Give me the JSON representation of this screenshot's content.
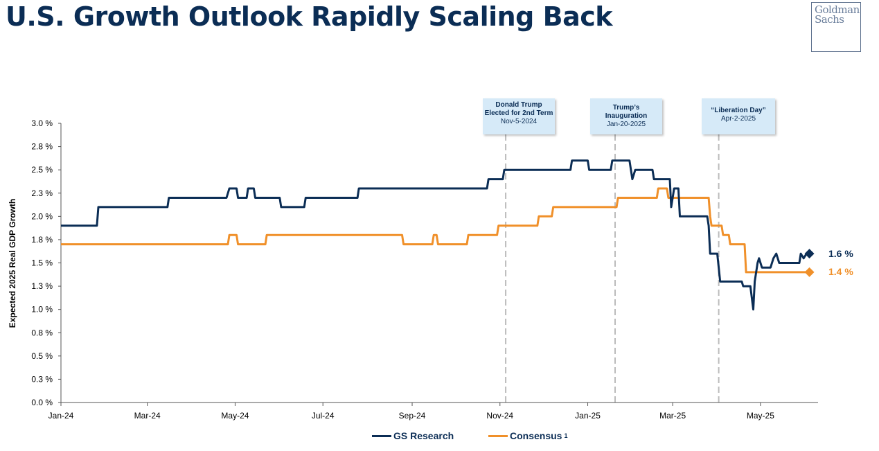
{
  "title": "U.S. Growth Outlook Rapidly Scaling Back",
  "logo": {
    "line1": "Goldman",
    "line2": "Sachs"
  },
  "annotations": [
    {
      "title": "Donald Trump Elected for 2nd Term",
      "date": "Nov-5-2024"
    },
    {
      "title": "Trump’s Inauguration",
      "date": "Jan-20-2025"
    },
    {
      "title": "“Liberation Day”",
      "date": "Apr-2-2025"
    }
  ],
  "legend": {
    "gs": "GS Research",
    "consensus": "Consensus",
    "consensus_sup": "1"
  },
  "end_labels": {
    "gs": "1.6 %",
    "consensus": "1.4 %"
  },
  "colors": {
    "gs": "#0b2d55",
    "consensus": "#f0902a",
    "axis": "#000000",
    "event_line": "#bbbbbb"
  },
  "chart_data": {
    "type": "line",
    "title": "U.S. Growth Outlook Rapidly Scaling Back",
    "ylabel": "Expected 2025 Real GDP Growth",
    "xlabel": "",
    "ylim": [
      0.0,
      3.0
    ],
    "xlim": [
      "2024-01-01",
      "2025-06-10"
    ],
    "yticks": [
      0.0,
      0.25,
      0.5,
      0.75,
      1.0,
      1.25,
      1.5,
      1.75,
      2.0,
      2.25,
      2.5,
      2.75,
      3.0
    ],
    "ytick_labels": [
      "0.0 %",
      "0.3 %",
      "0.5 %",
      "0.8 %",
      "1.0 %",
      "1.3 %",
      "1.5 %",
      "1.8 %",
      "2.0 %",
      "2.3 %",
      "2.5 %",
      "2.8 %",
      "3.0 %"
    ],
    "xticks": [
      "2024-01-01",
      "2024-03-01",
      "2024-05-01",
      "2024-07-01",
      "2024-09-01",
      "2024-11-01",
      "2025-01-01",
      "2025-03-01",
      "2025-05-01"
    ],
    "xtick_labels": [
      "Jan-24",
      "Mar-24",
      "May-24",
      "Jul-24",
      "Sep-24",
      "Nov-24",
      "Jan-25",
      "Mar-25",
      "May-25"
    ],
    "events": [
      "2024-11-05",
      "2025-01-20",
      "2025-04-02"
    ],
    "grid": false,
    "legend_position": "bottom",
    "series": [
      {
        "name": "GS Research",
        "points": [
          [
            "2024-01-01",
            1.9
          ],
          [
            "2024-01-26",
            1.9
          ],
          [
            "2024-01-27",
            2.1
          ],
          [
            "2024-03-15",
            2.1
          ],
          [
            "2024-03-16",
            2.2
          ],
          [
            "2024-04-25",
            2.2
          ],
          [
            "2024-04-27",
            2.3
          ],
          [
            "2024-05-02",
            2.3
          ],
          [
            "2024-05-03",
            2.2
          ],
          [
            "2024-05-09",
            2.2
          ],
          [
            "2024-05-10",
            2.3
          ],
          [
            "2024-05-14",
            2.3
          ],
          [
            "2024-05-15",
            2.2
          ],
          [
            "2024-06-01",
            2.2
          ],
          [
            "2024-06-02",
            2.1
          ],
          [
            "2024-06-18",
            2.1
          ],
          [
            "2024-06-19",
            2.2
          ],
          [
            "2024-07-25",
            2.2
          ],
          [
            "2024-07-26",
            2.3
          ],
          [
            "2024-10-23",
            2.3
          ],
          [
            "2024-10-24",
            2.4
          ],
          [
            "2024-11-03",
            2.4
          ],
          [
            "2024-11-04",
            2.5
          ],
          [
            "2024-12-20",
            2.5
          ],
          [
            "2024-12-21",
            2.6
          ],
          [
            "2025-01-01",
            2.6
          ],
          [
            "2025-01-02",
            2.5
          ],
          [
            "2025-01-17",
            2.5
          ],
          [
            "2025-01-18",
            2.6
          ],
          [
            "2025-01-30",
            2.6
          ],
          [
            "2025-02-01",
            2.4
          ],
          [
            "2025-02-03",
            2.5
          ],
          [
            "2025-02-15",
            2.5
          ],
          [
            "2025-02-16",
            2.4
          ],
          [
            "2025-02-27",
            2.4
          ],
          [
            "2025-02-28",
            2.1
          ],
          [
            "2025-03-01",
            2.2
          ],
          [
            "2025-03-02",
            2.3
          ],
          [
            "2025-03-05",
            2.3
          ],
          [
            "2025-03-06",
            2.0
          ],
          [
            "2025-03-25",
            2.0
          ],
          [
            "2025-03-26",
            1.9
          ],
          [
            "2025-03-27",
            1.6
          ],
          [
            "2025-04-01",
            1.6
          ],
          [
            "2025-04-02",
            1.45
          ],
          [
            "2025-04-03",
            1.3
          ],
          [
            "2025-04-18",
            1.3
          ],
          [
            "2025-04-19",
            1.25
          ],
          [
            "2025-04-24",
            1.25
          ],
          [
            "2025-04-26",
            1.0
          ],
          [
            "2025-04-27",
            1.3
          ],
          [
            "2025-04-29",
            1.5
          ],
          [
            "2025-04-30",
            1.55
          ],
          [
            "2025-05-02",
            1.45
          ],
          [
            "2025-05-08",
            1.45
          ],
          [
            "2025-05-10",
            1.55
          ],
          [
            "2025-05-12",
            1.6
          ],
          [
            "2025-05-14",
            1.5
          ],
          [
            "2025-05-28",
            1.5
          ],
          [
            "2025-05-29",
            1.6
          ],
          [
            "2025-05-31",
            1.55
          ],
          [
            "2025-06-02",
            1.6
          ],
          [
            "2025-06-04",
            1.6
          ]
        ]
      },
      {
        "name": "Consensus",
        "points": [
          [
            "2024-01-01",
            1.7
          ],
          [
            "2024-04-26",
            1.7
          ],
          [
            "2024-04-27",
            1.8
          ],
          [
            "2024-05-02",
            1.8
          ],
          [
            "2024-05-03",
            1.7
          ],
          [
            "2024-05-22",
            1.7
          ],
          [
            "2024-05-23",
            1.8
          ],
          [
            "2024-08-25",
            1.8
          ],
          [
            "2024-08-26",
            1.7
          ],
          [
            "2024-09-15",
            1.7
          ],
          [
            "2024-09-16",
            1.8
          ],
          [
            "2024-09-18",
            1.8
          ],
          [
            "2024-09-19",
            1.7
          ],
          [
            "2024-10-09",
            1.7
          ],
          [
            "2024-10-10",
            1.8
          ],
          [
            "2024-10-30",
            1.8
          ],
          [
            "2024-10-31",
            1.9
          ],
          [
            "2024-11-27",
            1.9
          ],
          [
            "2024-11-28",
            2.0
          ],
          [
            "2024-12-07",
            2.0
          ],
          [
            "2024-12-08",
            2.1
          ],
          [
            "2025-01-21",
            2.1
          ],
          [
            "2025-01-22",
            2.2
          ],
          [
            "2025-02-18",
            2.2
          ],
          [
            "2025-02-19",
            2.3
          ],
          [
            "2025-02-25",
            2.3
          ],
          [
            "2025-02-26",
            2.2
          ],
          [
            "2025-03-26",
            2.2
          ],
          [
            "2025-03-27",
            2.0
          ],
          [
            "2025-03-28",
            1.9
          ],
          [
            "2025-04-04",
            1.9
          ],
          [
            "2025-04-05",
            1.8
          ],
          [
            "2025-04-09",
            1.8
          ],
          [
            "2025-04-10",
            1.7
          ],
          [
            "2025-04-20",
            1.7
          ],
          [
            "2025-04-21",
            1.4
          ],
          [
            "2025-06-04",
            1.4
          ]
        ]
      }
    ]
  }
}
